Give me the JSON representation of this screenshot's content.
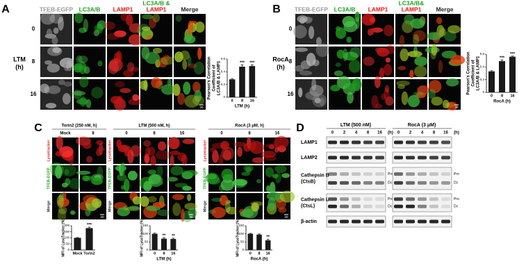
{
  "panel_a": {
    "label": "A",
    "columns": [
      [
        "TFEB-EGFP"
      ],
      [
        "LC3A/B"
      ],
      [
        "LAMP1"
      ],
      [
        "LC3A/B &",
        "LAMP1"
      ],
      [
        "Merge"
      ]
    ],
    "column_colors": [
      [
        "#9a9a9a"
      ],
      [
        "#22a022"
      ],
      [
        "#e01818"
      ],
      [
        "#22a022",
        "#e01818"
      ],
      [
        "#222222"
      ]
    ],
    "row_title": [
      "LTM",
      "(h)"
    ],
    "rows": [
      "0",
      "8",
      "16"
    ],
    "scale_bar": "20",
    "chart": {
      "type": "bar",
      "y_label": [
        "Pearson's Correlation",
        "Coefficient of",
        "LC3A/B & LAMP1"
      ],
      "x_label": "LTM (h)",
      "categories": [
        "0",
        "8",
        "16"
      ],
      "values": [
        0.28,
        0.48,
        0.49
      ],
      "errors": [
        0.01,
        0.03,
        0.02
      ],
      "significance": [
        null,
        "***",
        "***"
      ],
      "color": "#1a1a1a",
      "ylim": [
        0,
        0.6
      ],
      "yticks": [
        0,
        0.2,
        0.4,
        0.6
      ]
    }
  },
  "panel_b": {
    "label": "B",
    "columns": [
      [
        "TFEB-EGFP"
      ],
      [
        "LC3A/B"
      ],
      [
        "LAMP1"
      ],
      [
        "LC3A/B&",
        "LAMP1"
      ],
      [
        "Merge"
      ]
    ],
    "column_colors": [
      [
        "#9a9a9a"
      ],
      [
        "#22a022"
      ],
      [
        "#e01818"
      ],
      [
        "#22a022",
        "#e01818"
      ],
      [
        "#222222"
      ]
    ],
    "row_title": [
      "RocA",
      "(h)"
    ],
    "rows": [
      "0",
      "8",
      "16"
    ],
    "scale_bar": "20",
    "chart": {
      "type": "bar",
      "y_label": [
        "Pearson's Correlation",
        "Coefficient of",
        "LC3A/B & LAMP1"
      ],
      "x_label": "RocA (h)",
      "categories": [
        "0",
        "8",
        "16"
      ],
      "values": [
        0.33,
        0.49,
        0.56
      ],
      "errors": [
        0.01,
        0.02,
        0.01
      ],
      "significance": [
        null,
        "***",
        "***"
      ],
      "color": "#1a1a1a",
      "ylim": [
        0,
        0.6
      ],
      "yticks": [
        0,
        0.2,
        0.4,
        0.6
      ]
    }
  },
  "panel_c": {
    "label": "C",
    "rows": [
      "Lysotracker",
      "TFEB-EGFP",
      "Merge"
    ],
    "row_colors": [
      "#e01818",
      "#22a022",
      "#222222"
    ],
    "scale_bar": "20",
    "groups": [
      {
        "title": "Torin2 (250 nM, h)",
        "columns": [
          "Mock",
          "8"
        ],
        "chart": {
          "type": "bar",
          "y_label": "MFI of LysoTracker (%)",
          "categories": [
            "Mock",
            "Torin2"
          ],
          "values": [
            100,
            180
          ],
          "errors": [
            3,
            8
          ],
          "significance": [
            null,
            "***"
          ],
          "color": "#1a1a1a",
          "ylim": [
            0,
            200
          ],
          "yticks": [
            0,
            50,
            100,
            150,
            200
          ]
        }
      },
      {
        "title": "LTM (500 nM, h)",
        "columns": [
          "0",
          "8",
          "16"
        ],
        "chart": {
          "type": "bar",
          "y_label": "MFI of LysoTracker (%)",
          "x_label": "LTM (h)",
          "categories": [
            "0",
            "8",
            "16"
          ],
          "values": [
            100,
            70,
            68
          ],
          "errors": [
            4,
            5,
            5
          ],
          "significance": [
            null,
            "**",
            "**"
          ],
          "color": "#1a1a1a",
          "ylim": [
            0,
            150
          ],
          "yticks": [
            0,
            50,
            100,
            150
          ]
        }
      },
      {
        "title": "RocA (3 μM, h)",
        "columns": [
          "0",
          "8",
          "16"
        ],
        "chart": {
          "type": "bar",
          "y_label": "MFI of LysoTracker (%)",
          "x_label": "RocA (h)",
          "categories": [
            "0",
            "8",
            "16"
          ],
          "values": [
            100,
            95,
            60
          ],
          "errors": [
            3,
            4,
            6
          ],
          "significance": [
            null,
            null,
            "**"
          ],
          "color": "#1a1a1a",
          "ylim": [
            0,
            150
          ],
          "yticks": [
            0,
            50,
            100,
            150
          ]
        }
      }
    ]
  },
  "panel_d": {
    "label": "D",
    "unit": "(h)",
    "groups": [
      {
        "title": "LTM (500 nM)",
        "lanes": [
          "0",
          "2",
          "4",
          "8",
          "16"
        ]
      },
      {
        "title": "RocA (3 μM)",
        "lanes": [
          "0",
          "2",
          "4",
          "8",
          "16"
        ]
      }
    ],
    "rows": [
      [
        "LAMP1"
      ],
      [
        "LAMP2"
      ],
      [
        "Cathepsin B",
        "(CtsB)"
      ],
      [
        "Cathepsin L",
        "(CtsL)"
      ],
      [
        "β-actin"
      ]
    ],
    "band_labels": [
      "Pro",
      "Dc"
    ]
  }
}
